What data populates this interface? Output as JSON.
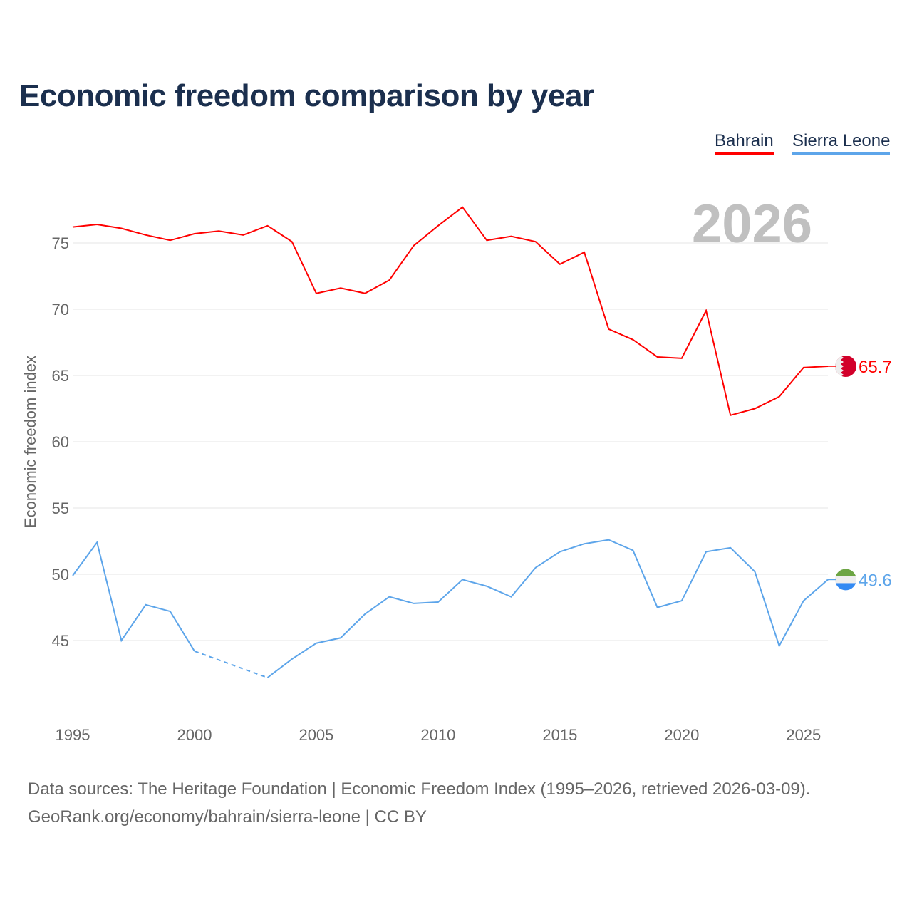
{
  "title": "Economic freedom comparison by year",
  "legend": [
    "Bahrain",
    "Sierra Leone"
  ],
  "year_watermark": "2026",
  "source_line1": "Data sources: The Heritage Foundation | Economic Freedom Index (1995–2026, retrieved 2026-03-09).",
  "source_line2": "GeoRank.org/economy/bahrain/sierra-leone | CC BY",
  "chart_data": {
    "type": "line",
    "title": "Economic freedom comparison by year",
    "xlabel": "",
    "ylabel": "Economic freedom index",
    "x": [
      1995,
      1996,
      1997,
      1998,
      1999,
      2000,
      2001,
      2002,
      2003,
      2004,
      2005,
      2006,
      2007,
      2008,
      2009,
      2010,
      2011,
      2012,
      2013,
      2014,
      2015,
      2016,
      2017,
      2018,
      2019,
      2020,
      2021,
      2022,
      2023,
      2024,
      2025,
      2026
    ],
    "xticks": [
      "1995",
      "2000",
      "2005",
      "2010",
      "2015",
      "2020",
      "2025"
    ],
    "yticks": [
      "45",
      "50",
      "55",
      "60",
      "65",
      "70",
      "75"
    ],
    "xlim": [
      1995,
      2026
    ],
    "ylim": [
      40,
      79
    ],
    "grid": true,
    "legend_position": "top-right",
    "series": [
      {
        "name": "Bahrain",
        "color": "#ff0000",
        "end_label": "65.7",
        "values": [
          76.2,
          76.4,
          76.1,
          75.6,
          75.2,
          75.7,
          75.9,
          75.6,
          76.3,
          75.1,
          71.2,
          71.6,
          71.2,
          72.2,
          74.8,
          76.3,
          77.7,
          75.2,
          75.5,
          75.1,
          73.4,
          74.3,
          68.5,
          67.7,
          66.4,
          66.3,
          69.9,
          62.0,
          62.5,
          63.4,
          65.6,
          65.7
        ]
      },
      {
        "name": "Sierra Leone",
        "color": "#5da5ea",
        "end_label": "49.6",
        "values": [
          49.9,
          52.4,
          45.0,
          47.7,
          47.2,
          44.2,
          null,
          null,
          42.2,
          43.6,
          44.8,
          45.2,
          47.0,
          48.3,
          47.8,
          47.9,
          49.6,
          49.1,
          48.3,
          50.5,
          51.7,
          52.3,
          52.6,
          51.8,
          47.5,
          48.0,
          51.7,
          52.0,
          50.2,
          44.6,
          48.0,
          49.6
        ]
      }
    ]
  }
}
